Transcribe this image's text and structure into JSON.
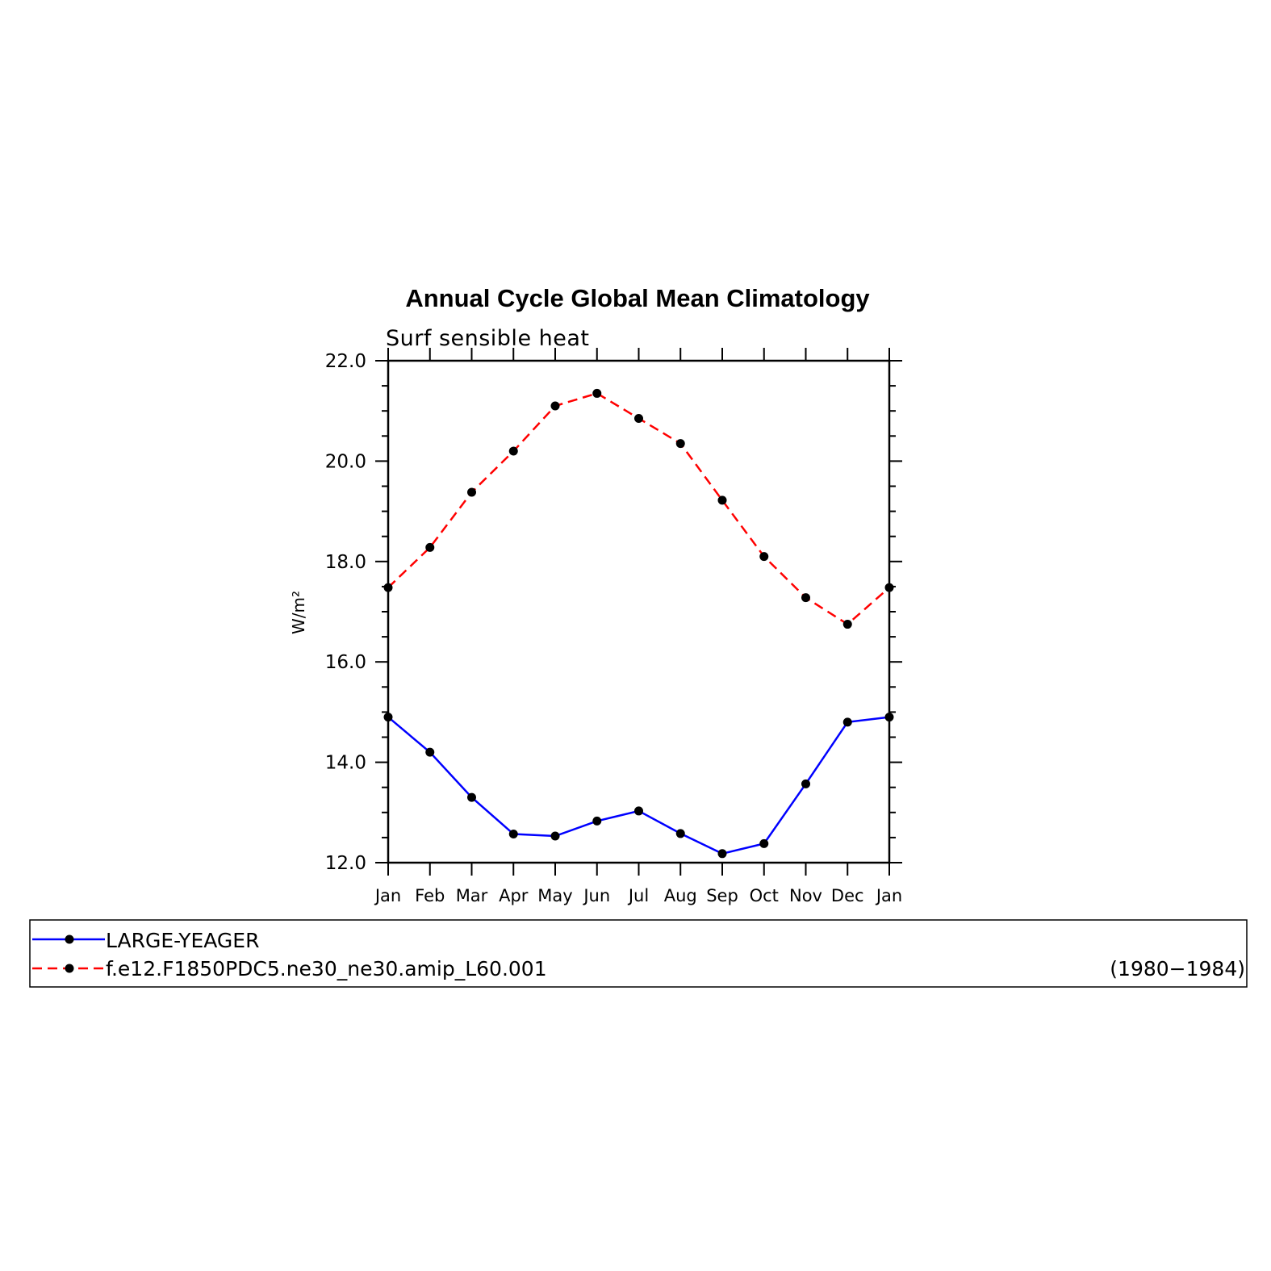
{
  "chart_data": {
    "type": "line",
    "title": "Annual Cycle Global Mean Climatology",
    "subtitle": "Surf sensible heat",
    "ylabel": "W/m²",
    "xlabel": "",
    "categories": [
      "Jan",
      "Feb",
      "Mar",
      "Apr",
      "May",
      "Jun",
      "Jul",
      "Aug",
      "Sep",
      "Oct",
      "Nov",
      "Dec",
      "Jan"
    ],
    "ylim": [
      12.0,
      22.0
    ],
    "yticks": [
      "12.0",
      "14.0",
      "16.0",
      "18.0",
      "20.0",
      "22.0"
    ],
    "grid": false,
    "legend_position": "bottom",
    "series": [
      {
        "name": "LARGE-YEAGER",
        "color": "#0000ff",
        "style": "solid",
        "values": [
          14.9,
          14.2,
          13.3,
          12.57,
          12.53,
          12.83,
          13.03,
          12.58,
          12.18,
          12.38,
          13.57,
          14.8,
          14.9
        ]
      },
      {
        "name": "f.e12.F1850PDC5.ne30_ne30.amip_L60.001",
        "color": "#ff0000",
        "style": "dashed",
        "values": [
          17.48,
          18.28,
          19.38,
          20.2,
          21.1,
          21.35,
          20.85,
          20.35,
          19.22,
          18.1,
          17.28,
          16.75,
          17.48
        ]
      }
    ],
    "legend_note": "(1980−1984)"
  }
}
